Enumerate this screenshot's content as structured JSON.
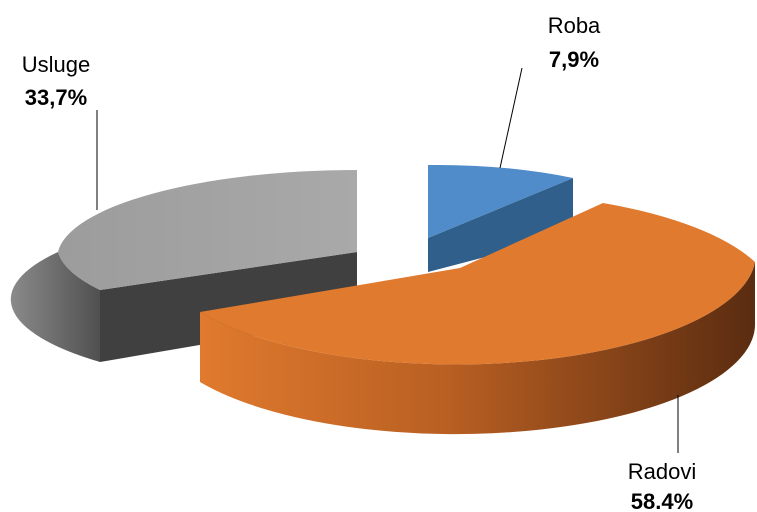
{
  "chart_data": {
    "type": "pie",
    "style": "3d-exploded",
    "slices": [
      {
        "label": "Roba",
        "value": 7.9,
        "display": "7,9%",
        "color": "#4F8CC9",
        "side_color": "#2F5F8A"
      },
      {
        "label": "Radovi",
        "value": 58.4,
        "display": "58.4%",
        "color": "#E07A2E",
        "side_color": "#6B3514"
      },
      {
        "label": "Usluge",
        "value": 33.7,
        "display": "33,7%",
        "color": "#A6A6A6",
        "side_color": "#404040"
      }
    ],
    "title": ""
  }
}
